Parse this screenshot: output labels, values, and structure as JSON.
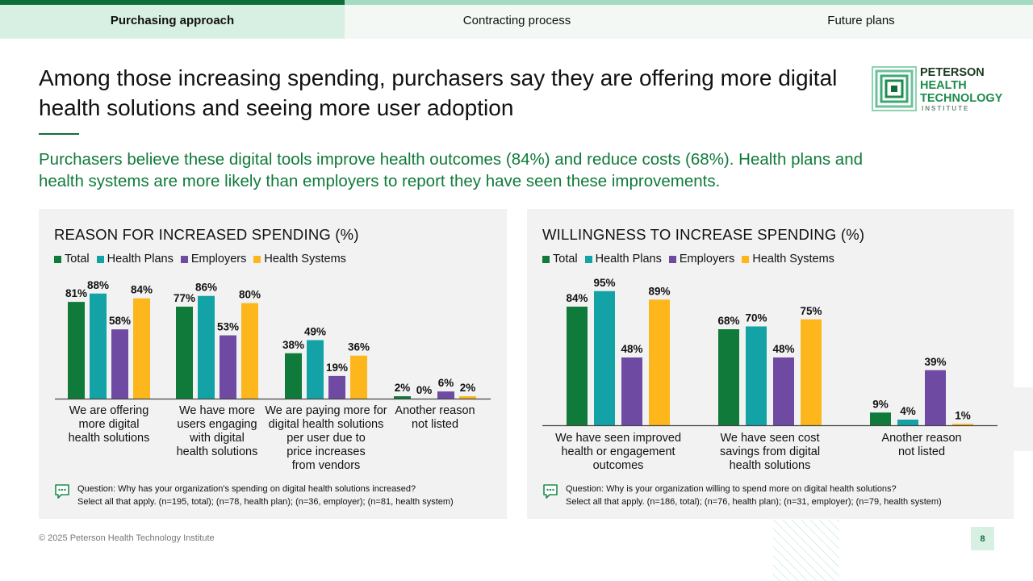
{
  "tabs": [
    {
      "label": "Purchasing approach",
      "active": true
    },
    {
      "label": "Contracting process",
      "active": false
    },
    {
      "label": "Future plans",
      "active": false
    }
  ],
  "title": "Among those increasing spending, purchasers say they are offering more digital health solutions and seeing more user adoption",
  "subtitle": "Purchasers believe these digital tools improve health outcomes (84%) and reduce costs (68%). Health plans and health systems are more likely than employers to report they have seen these improvements.",
  "logo": {
    "line1": "PETERSON",
    "line2": "HEALTH",
    "line3": "TECHNOLOGY",
    "line4": "INSTITUTE"
  },
  "colors": {
    "total": "#0f7a3a",
    "health_plans": "#13a3a7",
    "employers": "#6f4aa3",
    "health_systems": "#fdb71c"
  },
  "legend": [
    "Total",
    "Health Plans",
    "Employers",
    "Health Systems"
  ],
  "chart_data": [
    {
      "type": "bar",
      "title": "REASON FOR INCREASED SPENDING (%)",
      "categories": [
        "We are offering more digital health solutions",
        "We have more users engaging with digital health solutions",
        "We are paying more for digital health solutions per user due to price increases from vendors",
        "Another reason not listed"
      ],
      "category_lines": [
        [
          "We are offering",
          "more digital",
          "health solutions"
        ],
        [
          "We have more",
          "users engaging",
          "with digital",
          "health solutions"
        ],
        [
          "We are paying more for",
          "digital health  solutions",
          "per user due to",
          "price increases",
          "from vendors"
        ],
        [
          "Another reason",
          "not listed"
        ]
      ],
      "series": [
        {
          "name": "Total",
          "values": [
            81,
            77,
            38,
            2
          ]
        },
        {
          "name": "Health Plans",
          "values": [
            88,
            86,
            49,
            0
          ]
        },
        {
          "name": "Employers",
          "values": [
            58,
            53,
            19,
            6
          ]
        },
        {
          "name": "Health Systems",
          "values": [
            84,
            80,
            36,
            2
          ]
        }
      ],
      "ylim": [
        0,
        100
      ],
      "value_suffix": "%"
    },
    {
      "type": "bar",
      "title": "WILLINGNESS TO INCREASE SPENDING (%)",
      "categories": [
        "We have seen improved health or engagement outcomes",
        "We have seen cost savings from digital health solutions",
        "Another reason not listed"
      ],
      "category_lines": [
        [
          "We have seen improved",
          "health or engagement",
          "outcomes"
        ],
        [
          "We have seen cost",
          "savings from digital",
          "health solutions"
        ],
        [
          "Another reason",
          "not listed"
        ]
      ],
      "series": [
        {
          "name": "Total",
          "values": [
            84,
            68,
            9
          ]
        },
        {
          "name": "Health Plans",
          "values": [
            95,
            70,
            4
          ]
        },
        {
          "name": "Employers",
          "values": [
            48,
            48,
            39
          ]
        },
        {
          "name": "Health Systems",
          "values": [
            89,
            75,
            1
          ]
        }
      ],
      "ylim": [
        0,
        100
      ],
      "value_suffix": "%"
    }
  ],
  "notes": {
    "left": {
      "line1": "Question: Why has your organization's spending on digital health solutions increased?",
      "line2": "Select all that apply. (n=195, total); (n=78, health plan); (n=36, employer); (n=81, health system)"
    },
    "right": {
      "line1": "Question: Why is your organization willing to spend more on digital health solutions?",
      "line2": "Select all that apply. (n=186, total); (n=76, health plan); (n=31, employer); (n=79, health system)"
    }
  },
  "footer": "© 2025 Peterson Health Technology Institute",
  "page_number": "8"
}
